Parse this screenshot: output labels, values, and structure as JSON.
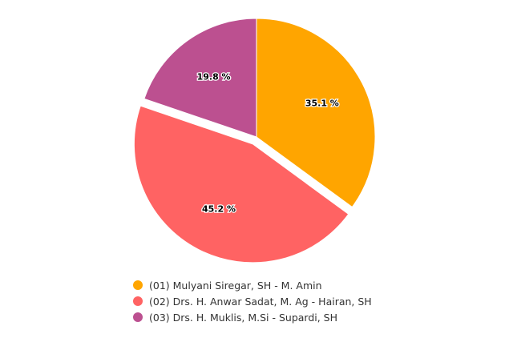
{
  "chart_data": {
    "type": "pie",
    "slices": [
      {
        "name": "(01) Mulyani Siregar, SH - M. Amin",
        "value": 35.1,
        "label": "35.1 %",
        "color": "#FFA500",
        "exploded": false
      },
      {
        "name": "(02) Drs. H. Anwar Sadat, M. Ag - Hairan, SH",
        "value": 45.2,
        "label": "45.2 %",
        "color": "#FF6363",
        "exploded": true
      },
      {
        "name": "(03) Drs. H. Muklis, M.Si - Supardi, SH",
        "value": 19.8,
        "label": "19.8 %",
        "color": "#BC5090",
        "exploded": false
      }
    ],
    "legend_position": "bottom"
  }
}
